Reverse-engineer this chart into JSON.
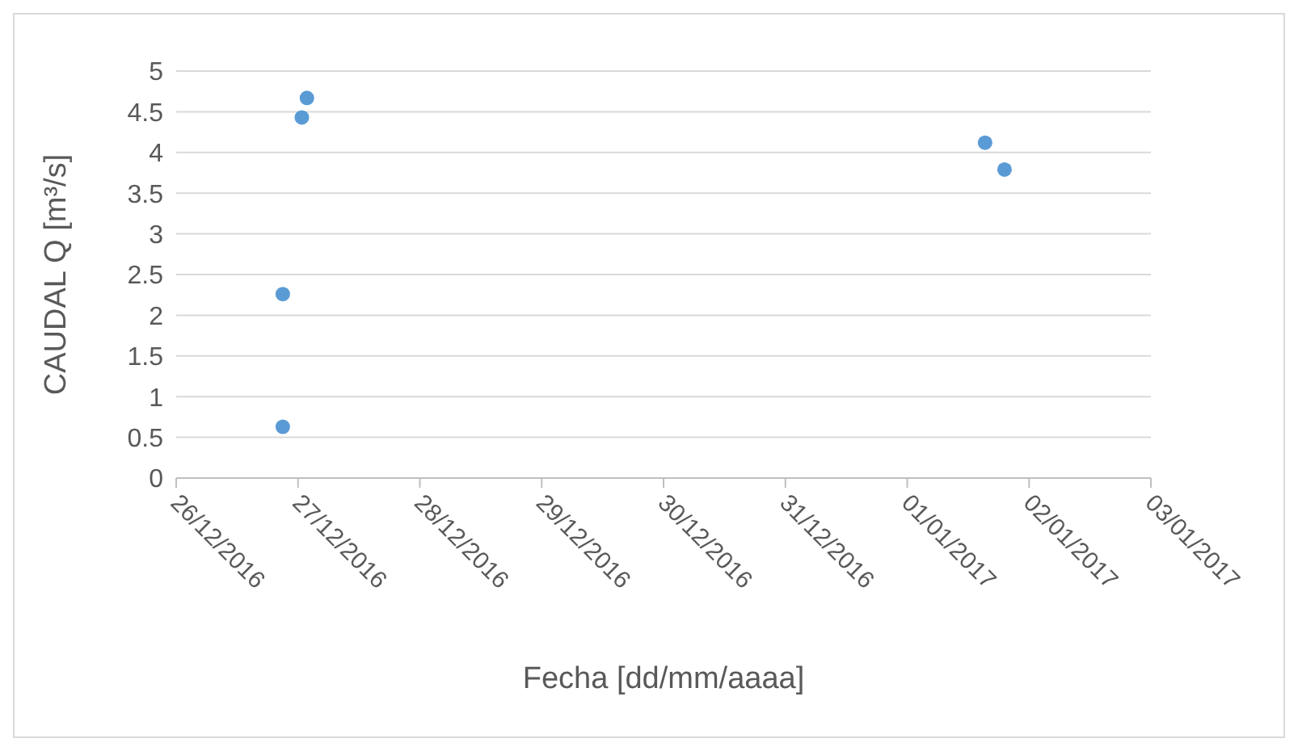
{
  "chart_data": {
    "type": "scatter",
    "xlabel": "Fecha [dd/mm/aaaa]",
    "ylabel": "CAUDAL Q [m³/s]",
    "x": [
      "2016-12-26T21:00",
      "2016-12-26T21:00",
      "2016-12-27T00:45",
      "2016-12-27T01:45",
      "2017-01-01T15:20",
      "2017-01-01T19:10"
    ],
    "values": [
      0.63,
      2.26,
      4.43,
      4.67,
      4.12,
      3.79
    ],
    "color": "#5b9bd5",
    "marker": "circle",
    "grid": "y",
    "xlim": [
      "2016-12-26",
      "2017-01-03"
    ],
    "xticks": [
      {
        "value": "2016-12-26",
        "label": "26/12/2016"
      },
      {
        "value": "2016-12-27",
        "label": "27/12/2016"
      },
      {
        "value": "2016-12-28",
        "label": "28/12/2016"
      },
      {
        "value": "2016-12-29",
        "label": "29/12/2016"
      },
      {
        "value": "2016-12-30",
        "label": "30/12/2016"
      },
      {
        "value": "2016-12-31",
        "label": "31/12/2016"
      },
      {
        "value": "2017-01-01",
        "label": "01/01/2017"
      },
      {
        "value": "2017-01-02",
        "label": "02/01/2017"
      },
      {
        "value": "2017-01-03",
        "label": "03/01/2017"
      }
    ],
    "ylim": [
      0,
      5
    ],
    "yticks": [
      0,
      0.5,
      1,
      1.5,
      2,
      2.5,
      3,
      3.5,
      4,
      4.5,
      5
    ]
  }
}
